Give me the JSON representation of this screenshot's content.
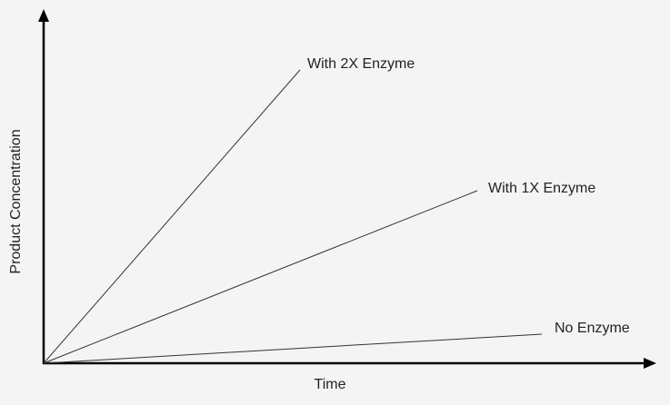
{
  "axes": {
    "x_label": "Time",
    "y_label": "Product Concentration"
  },
  "curves": [
    {
      "label": "With 2X Enzyme"
    },
    {
      "label": "With 1X Enzyme"
    },
    {
      "label": "No Enzyme"
    }
  ]
}
